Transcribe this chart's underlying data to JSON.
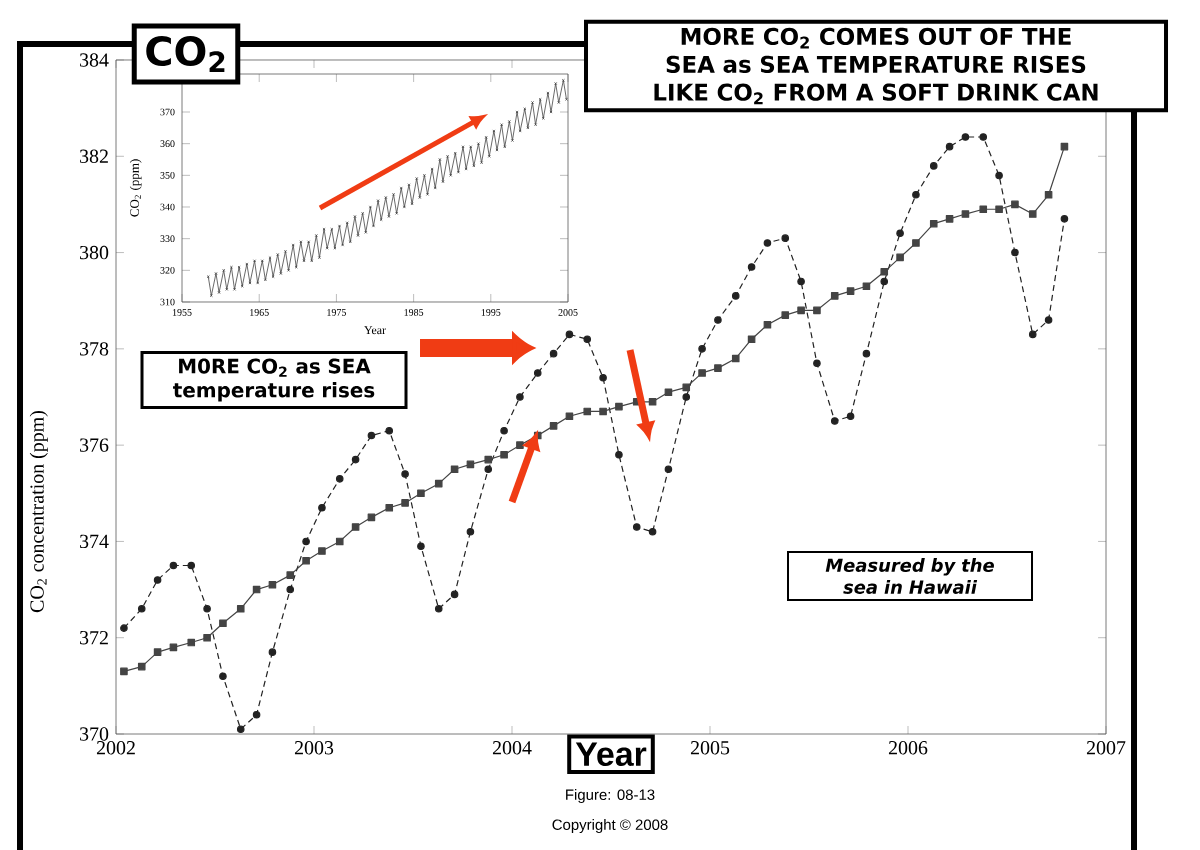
{
  "chart_data": [
    {
      "type": "line",
      "title": "CO$_{2}$",
      "xlabel": "Year",
      "ylabel": "CO$_{2}$ concentration (ppm)",
      "xlim": [
        2002,
        2007
      ],
      "xticks": [
        2002,
        2003,
        2004,
        2005,
        2006,
        2007
      ],
      "ylim": [
        370,
        384
      ],
      "yticks": [
        370,
        372,
        374,
        376,
        378,
        380,
        382,
        384
      ],
      "x": [
        2002.04,
        2002.13,
        2002.21,
        2002.29,
        2002.38,
        2002.46,
        2002.54,
        2002.63,
        2002.71,
        2002.79,
        2002.88,
        2002.96,
        2003.04,
        2003.13,
        2003.21,
        2003.29,
        2003.38,
        2003.46,
        2003.54,
        2003.63,
        2003.71,
        2003.79,
        2003.88,
        2003.96,
        2004.04,
        2004.13,
        2004.21,
        2004.29,
        2004.38,
        2004.46,
        2004.54,
        2004.63,
        2004.71,
        2004.79,
        2004.88,
        2004.96,
        2005.04,
        2005.13,
        2005.21,
        2005.29,
        2005.38,
        2005.46,
        2005.54,
        2005.63,
        2005.71,
        2005.79,
        2005.88,
        2005.96,
        2006.04,
        2006.13,
        2006.21,
        2006.29,
        2006.38,
        2006.46,
        2006.54,
        2006.63,
        2006.71,
        2006.79
      ],
      "series": [
        {
          "color": "#222222",
          "line_style": "dashed",
          "marker": "circle",
          "values": [
            372.2,
            372.6,
            373.2,
            373.5,
            373.5,
            372.6,
            371.2,
            370.1,
            370.4,
            371.7,
            373.0,
            374.0,
            374.7,
            375.3,
            375.7,
            376.2,
            376.3,
            375.4,
            373.9,
            372.6,
            372.9,
            374.2,
            375.5,
            376.3,
            377.0,
            377.5,
            377.9,
            378.3,
            378.2,
            377.4,
            375.8,
            374.3,
            374.2,
            375.5,
            377.0,
            378.0,
            378.6,
            379.1,
            379.7,
            380.2,
            380.3,
            379.4,
            377.7,
            376.5,
            376.6,
            377.9,
            379.4,
            380.4,
            381.2,
            381.8,
            382.2,
            382.4,
            382.4,
            381.6,
            380.0,
            378.3,
            378.6,
            380.7
          ]
        },
        {
          "color": "#444444",
          "line_style": "solid",
          "marker": "square",
          "values": [
            371.3,
            371.4,
            371.7,
            371.8,
            371.9,
            372.0,
            372.3,
            372.6,
            373.0,
            373.1,
            373.3,
            373.6,
            373.8,
            374.0,
            374.3,
            374.5,
            374.7,
            374.8,
            375.0,
            375.2,
            375.5,
            375.6,
            375.7,
            375.8,
            376.0,
            376.2,
            376.4,
            376.6,
            376.7,
            376.7,
            376.8,
            376.9,
            376.9,
            377.1,
            377.2,
            377.5,
            377.6,
            377.8,
            378.2,
            378.5,
            378.7,
            378.8,
            378.8,
            379.1,
            379.2,
            379.3,
            379.6,
            379.9,
            380.2,
            380.6,
            380.7,
            380.8,
            380.9,
            380.9,
            381.0,
            380.8,
            381.2,
            382.2
          ]
        }
      ],
      "annotations": [
        "MORE CO$_{2}$ COMES OUT OF THE SEA as SEA TEMPERATURE RISES LIKE CO$_{2}$ FROM A SOFT DRINK CAN",
        "M0RE CO$_{2}$ as SEA temperature rises",
        "Measured by the sea in Hawaii",
        "Figure: 08-13",
        "Copyright © 2008"
      ]
    },
    {
      "type": "line",
      "xlabel": "Year",
      "ylabel": "CO$_{2}$ (ppm)",
      "xlim": [
        1955,
        2005
      ],
      "xticks": [
        1955,
        1965,
        1975,
        1985,
        1995,
        2005
      ],
      "ylim": [
        310,
        382
      ],
      "yticks": [
        310,
        320,
        330,
        340,
        350,
        360,
        370
      ],
      "x": [
        1958.4,
        1958.8,
        1959.4,
        1959.8,
        1960.4,
        1960.8,
        1961.4,
        1961.8,
        1962.4,
        1962.8,
        1963.4,
        1963.8,
        1964.4,
        1964.8,
        1965.4,
        1965.8,
        1966.4,
        1966.8,
        1967.4,
        1967.8,
        1968.4,
        1968.8,
        1969.4,
        1969.8,
        1970.4,
        1970.8,
        1971.4,
        1971.8,
        1972.4,
        1972.8,
        1973.4,
        1973.8,
        1974.4,
        1974.8,
        1975.4,
        1975.8,
        1976.4,
        1976.8,
        1977.4,
        1977.8,
        1978.4,
        1978.8,
        1979.4,
        1979.8,
        1980.4,
        1980.8,
        1981.4,
        1981.8,
        1982.4,
        1982.8,
        1983.4,
        1983.8,
        1984.4,
        1984.8,
        1985.4,
        1985.8,
        1986.4,
        1986.8,
        1987.4,
        1987.8,
        1988.4,
        1988.8,
        1989.4,
        1989.8,
        1990.4,
        1990.8,
        1991.4,
        1991.8,
        1992.4,
        1992.8,
        1993.4,
        1993.8,
        1994.4,
        1994.8,
        1995.4,
        1995.8,
        1996.4,
        1996.8,
        1997.4,
        1997.8,
        1998.4,
        1998.8,
        1999.4,
        1999.8,
        2000.4,
        2000.8,
        2001.4,
        2001.8,
        2002.4,
        2002.8,
        2003.4,
        2003.8,
        2004.4,
        2004.8
      ],
      "series": [
        {
          "color": "#444444",
          "line_style": "solid",
          "marker": "cross",
          "values": [
            318,
            312,
            319,
            313,
            320,
            314,
            321,
            314,
            321,
            315,
            322,
            316,
            323,
            316,
            323,
            317,
            324,
            318,
            325,
            319,
            326,
            320,
            328,
            321,
            329,
            323,
            329,
            323,
            331,
            324,
            333,
            327,
            333,
            327,
            334,
            328,
            335,
            329,
            337,
            331,
            338,
            332,
            340,
            334,
            342,
            336,
            343,
            337,
            344,
            338,
            346,
            340,
            347,
            341,
            349,
            343,
            350,
            344,
            352,
            346,
            355,
            348,
            356,
            350,
            357,
            351,
            359,
            352,
            359,
            353,
            360,
            354,
            362,
            356,
            364,
            358,
            366,
            359,
            367,
            361,
            370,
            364,
            371,
            365,
            373,
            366,
            374,
            368,
            376,
            370,
            379,
            373,
            380,
            374
          ]
        }
      ]
    }
  ]
}
